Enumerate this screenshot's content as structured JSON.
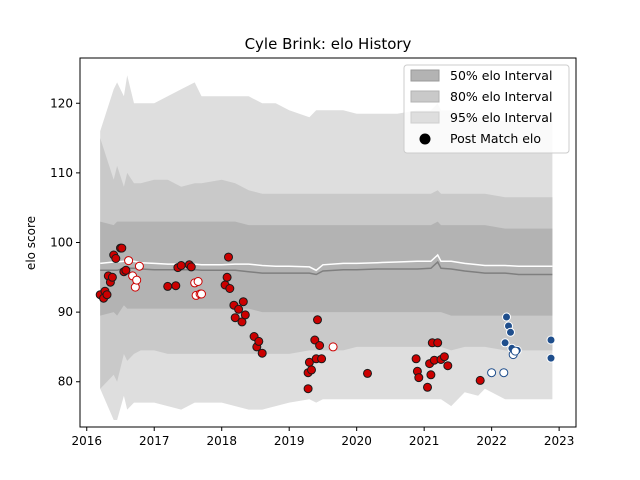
{
  "chart_data": {
    "type": "scatter",
    "title": "Cyle Brink: elo History",
    "xlabel": "",
    "ylabel": "elo score",
    "xlim": [
      2015.9,
      2023.25
    ],
    "ylim": [
      73.5,
      126.5
    ],
    "x_ticks": [
      2016,
      2017,
      2018,
      2019,
      2020,
      2021,
      2022,
      2023
    ],
    "y_ticks": [
      80,
      90,
      100,
      110,
      120
    ],
    "grid": false,
    "legend": {
      "placement": "top-right",
      "entries": [
        "50% elo Interval",
        "80% elo Interval",
        "95% elo Interval",
        "Post Match elo"
      ]
    },
    "colors": {
      "band50": "#b3b3b3",
      "band80": "#c9c9c9",
      "band95": "#dedede",
      "median_line": "#7f7f7f",
      "mean_line": "#ffffff",
      "red_fill": "#cc0000",
      "blue_fill": "#1f4e8c",
      "marker_edge_red": "#cc0000",
      "marker_edge_blue": "#1f4e8c"
    },
    "intervals": {
      "x": [
        2016.2,
        2016.4,
        2016.45,
        2016.55,
        2016.6,
        2016.7,
        2016.8,
        2017.0,
        2017.2,
        2017.4,
        2017.6,
        2017.7,
        2018.0,
        2018.2,
        2018.4,
        2018.6,
        2018.8,
        2019.0,
        2019.3,
        2019.4,
        2019.5,
        2019.8,
        2020.0,
        2020.3,
        2020.6,
        2020.9,
        2021.1,
        2021.2,
        2021.25,
        2021.4,
        2021.6,
        2021.8,
        2021.9,
        2022.2,
        2022.4,
        2022.8,
        2022.9
      ],
      "p95_hi": [
        116,
        122,
        123,
        121,
        124,
        120,
        120,
        120,
        121,
        122,
        123,
        121,
        121,
        121,
        121,
        120,
        120,
        119,
        118,
        119,
        119,
        119,
        118.5,
        118.5,
        118.5,
        119,
        119,
        120,
        119,
        119,
        118.5,
        118,
        117.5,
        117.5,
        117.5,
        117.5,
        117.5
      ],
      "p95_lo": [
        79,
        74.5,
        74.5,
        78,
        76,
        77,
        77,
        77,
        76.5,
        76,
        77,
        77,
        77,
        76.5,
        76,
        76,
        76.5,
        77,
        77.5,
        77,
        77.5,
        77.5,
        77.5,
        77.5,
        77.5,
        77.5,
        77.5,
        77.5,
        77.5,
        76.5,
        78.5,
        78,
        79,
        77.5,
        77.5,
        77.5,
        77.5
      ],
      "p80_hi": [
        115,
        109,
        111,
        108,
        110,
        108.5,
        108.5,
        109,
        109,
        108,
        108.5,
        108.5,
        109,
        108.5,
        107.5,
        107,
        107,
        107,
        107,
        107,
        107,
        107,
        107,
        107,
        107,
        107,
        107,
        107.5,
        107,
        107,
        107,
        107,
        107,
        106.5,
        106.5,
        106.5,
        106.5
      ],
      "p80_lo": [
        79,
        81,
        80,
        84,
        83,
        84,
        84.5,
        84.5,
        84,
        84,
        84,
        84,
        84,
        84,
        84,
        84,
        84,
        84,
        84.5,
        84.5,
        84.5,
        84.5,
        85,
        85,
        85,
        85,
        85,
        85,
        85,
        84.5,
        85,
        85,
        85,
        84.5,
        84.5,
        84.5,
        84.5
      ],
      "p50_hi": [
        103,
        102.5,
        103,
        103,
        103,
        103,
        103,
        103,
        103,
        103,
        103,
        103,
        103,
        103,
        102.5,
        102.5,
        102.5,
        102.5,
        102.5,
        102.5,
        102.5,
        102.5,
        102.5,
        102.5,
        102.5,
        102.5,
        102.5,
        103,
        102.5,
        102.5,
        102.5,
        102.5,
        102.5,
        102,
        102,
        102,
        102
      ],
      "p50_lo": [
        89.5,
        90,
        89.5,
        91,
        90.5,
        90.5,
        90.5,
        90.5,
        90.5,
        90.5,
        90.5,
        90.5,
        90.5,
        90.5,
        90.5,
        90,
        90,
        90,
        90,
        90,
        90,
        90,
        90,
        90,
        90,
        90,
        90,
        90,
        90,
        89.5,
        89.5,
        89.5,
        89.5,
        89.5,
        89.5,
        89.5,
        89.5
      ],
      "median": [
        96,
        96,
        96,
        96.3,
        96.3,
        96.3,
        96.2,
        96.1,
        96.1,
        96.1,
        96.1,
        96.0,
        96.0,
        96.0,
        95.8,
        95.6,
        95.6,
        95.6,
        95.6,
        95.4,
        95.9,
        96.1,
        96.1,
        96.2,
        96.2,
        96.2,
        96.3,
        97.2,
        96.3,
        96.2,
        95.9,
        95.7,
        95.6,
        95.6,
        95.4,
        95.4,
        95.4
      ],
      "mean": [
        97,
        97.2,
        97.2,
        97.3,
        97.4,
        97.3,
        97.1,
        97.0,
        96.9,
        96.9,
        96.9,
        96.8,
        96.8,
        96.9,
        96.9,
        96.7,
        96.6,
        96.6,
        96.5,
        96.0,
        96.8,
        97.0,
        97.0,
        97.1,
        97.2,
        97.3,
        97.3,
        98.2,
        97.3,
        97.3,
        97.0,
        96.8,
        96.7,
        96.7,
        96.6,
        96.6,
        96.6
      ]
    },
    "series": [
      {
        "color": "red",
        "filled": true,
        "points": [
          [
            2016.2,
            92.5
          ],
          [
            2016.25,
            92.0
          ],
          [
            2016.27,
            93.0
          ],
          [
            2016.3,
            92.5
          ],
          [
            2016.32,
            95.2
          ],
          [
            2016.35,
            94.3
          ],
          [
            2016.38,
            95.0
          ],
          [
            2016.4,
            98.2
          ],
          [
            2016.43,
            97.7
          ],
          [
            2016.5,
            99.2
          ],
          [
            2016.52,
            99.2
          ],
          [
            2016.55,
            95.8
          ],
          [
            2016.58,
            96.0
          ],
          [
            2017.2,
            93.7
          ],
          [
            2017.32,
            93.8
          ],
          [
            2017.35,
            96.4
          ],
          [
            2017.4,
            96.7
          ],
          [
            2017.52,
            96.8
          ],
          [
            2017.55,
            96.5
          ],
          [
            2018.05,
            93.9
          ],
          [
            2018.08,
            95.0
          ],
          [
            2018.1,
            97.9
          ],
          [
            2018.12,
            93.4
          ],
          [
            2018.18,
            91.0
          ],
          [
            2018.2,
            89.2
          ],
          [
            2018.25,
            90.4
          ],
          [
            2018.3,
            88.6
          ],
          [
            2018.32,
            91.5
          ],
          [
            2018.35,
            89.6
          ],
          [
            2018.48,
            86.5
          ],
          [
            2018.52,
            85.0
          ],
          [
            2018.55,
            85.8
          ],
          [
            2018.6,
            84.1
          ],
          [
            2019.28,
            79.0
          ],
          [
            2019.28,
            81.3
          ],
          [
            2019.3,
            82.8
          ],
          [
            2019.33,
            81.7
          ],
          [
            2019.38,
            86.0
          ],
          [
            2019.4,
            83.3
          ],
          [
            2019.42,
            88.9
          ],
          [
            2019.45,
            85.2
          ],
          [
            2019.48,
            83.3
          ],
          [
            2020.16,
            81.2
          ],
          [
            2020.88,
            83.3
          ],
          [
            2020.9,
            81.5
          ],
          [
            2020.92,
            80.6
          ],
          [
            2021.05,
            79.2
          ],
          [
            2021.08,
            82.6
          ],
          [
            2021.1,
            81.0
          ],
          [
            2021.12,
            85.6
          ],
          [
            2021.15,
            83.1
          ],
          [
            2021.2,
            85.6
          ],
          [
            2021.25,
            83.2
          ],
          [
            2021.3,
            83.6
          ],
          [
            2021.35,
            82.3
          ],
          [
            2021.83,
            80.2
          ]
        ]
      },
      {
        "color": "red",
        "filled": false,
        "points": [
          [
            2016.62,
            97.4
          ],
          [
            2016.68,
            95.2
          ],
          [
            2016.72,
            93.6
          ],
          [
            2016.74,
            94.6
          ],
          [
            2016.78,
            96.6
          ],
          [
            2017.6,
            94.2
          ],
          [
            2017.62,
            92.4
          ],
          [
            2017.65,
            94.4
          ],
          [
            2017.68,
            92.6
          ],
          [
            2017.7,
            92.6
          ],
          [
            2019.65,
            85.0
          ]
        ]
      },
      {
        "color": "blue",
        "filled": true,
        "points": [
          [
            2022.2,
            85.6
          ],
          [
            2022.22,
            89.3
          ],
          [
            2022.25,
            88.0
          ],
          [
            2022.28,
            87.1
          ],
          [
            2022.3,
            84.8
          ],
          [
            2022.38,
            84.5
          ],
          [
            2022.88,
            86.0
          ],
          [
            2022.88,
            83.4
          ]
        ]
      },
      {
        "color": "blue",
        "filled": false,
        "points": [
          [
            2022.0,
            81.3
          ],
          [
            2022.18,
            81.3
          ],
          [
            2022.32,
            83.9
          ],
          [
            2022.35,
            84.4
          ]
        ]
      }
    ]
  }
}
